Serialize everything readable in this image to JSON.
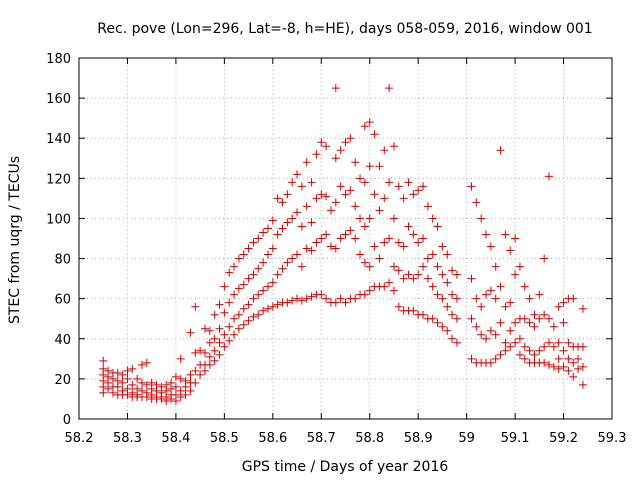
{
  "colors": {
    "series": "#d40000",
    "background": "#ffffff",
    "axis": "#000000",
    "grid": "#b0b0b0"
  },
  "chart_data": {
    "type": "scatter",
    "title": "Rec. pove (Lon=296, Lat=-8, h=HE), days 058-059, 2016, window 001",
    "xlabel": "GPS time / Days of year 2016",
    "ylabel": "STEC from uqrg / TECUs",
    "xlim": [
      58.2,
      59.3
    ],
    "ylim": [
      0,
      180
    ],
    "xticks": [
      58.2,
      58.3,
      58.4,
      58.5,
      58.6,
      58.7,
      58.8,
      58.9,
      59.0,
      59.1,
      59.2,
      59.3
    ],
    "xtick_labels": [
      "58.2",
      "58.3",
      "58.4",
      "58.5",
      "58.6",
      "58.7",
      "58.8",
      "58.9",
      "59",
      "59.1",
      "59.2",
      "59.3"
    ],
    "yticks": [
      0,
      20,
      40,
      60,
      80,
      100,
      120,
      140,
      160,
      180
    ],
    "ytick_labels": [
      "0",
      "20",
      "40",
      "60",
      "80",
      "100",
      "120",
      "140",
      "160",
      "180"
    ],
    "grid": true,
    "marker": "plus",
    "points": [
      [
        58.25,
        29
      ],
      [
        58.25,
        25
      ],
      [
        58.25,
        22
      ],
      [
        58.25,
        19
      ],
      [
        58.25,
        16
      ],
      [
        58.25,
        13
      ],
      [
        58.26,
        24
      ],
      [
        58.26,
        21
      ],
      [
        58.26,
        18
      ],
      [
        58.26,
        15
      ],
      [
        58.27,
        23
      ],
      [
        58.27,
        20
      ],
      [
        58.27,
        16
      ],
      [
        58.27,
        13
      ],
      [
        58.28,
        23
      ],
      [
        58.28,
        19
      ],
      [
        58.28,
        16
      ],
      [
        58.28,
        12
      ],
      [
        58.29,
        22
      ],
      [
        58.29,
        18
      ],
      [
        58.29,
        14
      ],
      [
        58.29,
        12
      ],
      [
        58.3,
        24
      ],
      [
        58.3,
        20
      ],
      [
        58.3,
        15
      ],
      [
        58.3,
        12
      ],
      [
        58.31,
        25
      ],
      [
        58.31,
        17
      ],
      [
        58.31,
        13
      ],
      [
        58.31,
        11
      ],
      [
        58.32,
        20
      ],
      [
        58.32,
        15
      ],
      [
        58.32,
        12
      ],
      [
        58.32,
        11
      ],
      [
        58.33,
        27
      ],
      [
        58.33,
        18
      ],
      [
        58.33,
        14
      ],
      [
        58.33,
        11
      ],
      [
        58.34,
        28
      ],
      [
        58.34,
        17
      ],
      [
        58.34,
        13
      ],
      [
        58.34,
        11
      ],
      [
        58.35,
        18
      ],
      [
        58.35,
        15
      ],
      [
        58.35,
        12
      ],
      [
        58.35,
        10
      ],
      [
        58.36,
        17
      ],
      [
        58.36,
        14
      ],
      [
        58.36,
        11
      ],
      [
        58.36,
        10
      ],
      [
        58.37,
        16
      ],
      [
        58.37,
        13
      ],
      [
        58.37,
        11
      ],
      [
        58.37,
        10
      ],
      [
        58.38,
        17
      ],
      [
        58.38,
        14
      ],
      [
        58.38,
        11
      ],
      [
        58.38,
        9
      ],
      [
        58.39,
        18
      ],
      [
        58.39,
        15
      ],
      [
        58.39,
        12
      ],
      [
        58.39,
        10
      ],
      [
        58.4,
        21
      ],
      [
        58.4,
        16
      ],
      [
        58.4,
        12
      ],
      [
        58.4,
        9
      ],
      [
        58.41,
        30
      ],
      [
        58.41,
        20
      ],
      [
        58.41,
        14
      ],
      [
        58.41,
        11
      ],
      [
        58.42,
        19
      ],
      [
        58.42,
        16
      ],
      [
        58.42,
        12
      ],
      [
        58.43,
        43
      ],
      [
        58.43,
        22
      ],
      [
        58.43,
        18
      ],
      [
        58.43,
        14
      ],
      [
        58.44,
        56
      ],
      [
        58.44,
        33
      ],
      [
        58.44,
        24
      ],
      [
        58.44,
        18
      ],
      [
        58.45,
        34
      ],
      [
        58.45,
        27
      ],
      [
        58.45,
        22
      ],
      [
        58.46,
        45
      ],
      [
        58.46,
        33
      ],
      [
        58.46,
        27
      ],
      [
        58.46,
        24
      ],
      [
        58.47,
        44
      ],
      [
        58.47,
        38
      ],
      [
        58.47,
        31
      ],
      [
        58.47,
        27
      ],
      [
        58.48,
        52
      ],
      [
        58.48,
        40
      ],
      [
        58.48,
        34
      ],
      [
        58.48,
        29
      ],
      [
        58.49,
        57
      ],
      [
        58.49,
        45
      ],
      [
        58.49,
        38
      ],
      [
        58.49,
        32
      ],
      [
        58.5,
        66
      ],
      [
        58.5,
        53
      ],
      [
        58.5,
        42
      ],
      [
        58.5,
        36
      ],
      [
        58.51,
        73
      ],
      [
        58.51,
        58
      ],
      [
        58.51,
        46
      ],
      [
        58.51,
        39
      ],
      [
        58.52,
        76
      ],
      [
        58.52,
        62
      ],
      [
        58.52,
        50
      ],
      [
        58.52,
        42
      ],
      [
        58.53,
        80
      ],
      [
        58.53,
        65
      ],
      [
        58.53,
        52
      ],
      [
        58.53,
        45
      ],
      [
        58.54,
        82
      ],
      [
        58.54,
        67
      ],
      [
        58.54,
        55
      ],
      [
        58.54,
        47
      ],
      [
        58.55,
        85
      ],
      [
        58.55,
        70
      ],
      [
        58.55,
        57
      ],
      [
        58.55,
        49
      ],
      [
        58.56,
        88
      ],
      [
        58.56,
        72
      ],
      [
        58.56,
        60
      ],
      [
        58.56,
        51
      ],
      [
        58.57,
        90
      ],
      [
        58.57,
        75
      ],
      [
        58.57,
        62
      ],
      [
        58.57,
        52
      ],
      [
        58.58,
        93
      ],
      [
        58.58,
        78
      ],
      [
        58.58,
        64
      ],
      [
        58.58,
        54
      ],
      [
        58.59,
        95
      ],
      [
        58.59,
        82
      ],
      [
        58.59,
        66
      ],
      [
        58.59,
        55
      ],
      [
        58.6,
        99
      ],
      [
        58.6,
        85
      ],
      [
        58.6,
        68
      ],
      [
        58.6,
        56
      ],
      [
        58.61,
        110
      ],
      [
        58.61,
        92
      ],
      [
        58.61,
        72
      ],
      [
        58.61,
        57
      ],
      [
        58.62,
        108
      ],
      [
        58.62,
        95
      ],
      [
        58.62,
        75
      ],
      [
        58.62,
        58
      ],
      [
        58.63,
        112
      ],
      [
        58.63,
        98
      ],
      [
        58.63,
        78
      ],
      [
        58.63,
        58
      ],
      [
        58.64,
        118
      ],
      [
        58.64,
        100
      ],
      [
        58.64,
        80
      ],
      [
        58.64,
        59
      ],
      [
        58.65,
        122
      ],
      [
        58.65,
        103
      ],
      [
        58.65,
        82
      ],
      [
        58.65,
        60
      ],
      [
        58.66,
        116
      ],
      [
        58.66,
        96
      ],
      [
        58.66,
        76
      ],
      [
        58.66,
        59
      ],
      [
        58.67,
        128
      ],
      [
        58.67,
        106
      ],
      [
        58.67,
        85
      ],
      [
        58.67,
        60
      ],
      [
        58.68,
        118
      ],
      [
        58.68,
        98
      ],
      [
        58.68,
        84
      ],
      [
        58.68,
        61
      ],
      [
        58.69,
        132
      ],
      [
        58.69,
        110
      ],
      [
        58.69,
        88
      ],
      [
        58.69,
        62
      ],
      [
        58.7,
        138
      ],
      [
        58.7,
        112
      ],
      [
        58.7,
        90
      ],
      [
        58.7,
        62
      ],
      [
        58.71,
        136
      ],
      [
        58.71,
        111
      ],
      [
        58.71,
        92
      ],
      [
        58.71,
        60
      ],
      [
        58.72,
        104
      ],
      [
        58.72,
        86
      ],
      [
        58.72,
        58
      ],
      [
        58.73,
        165
      ],
      [
        58.73,
        130
      ],
      [
        58.73,
        108
      ],
      [
        58.73,
        85
      ],
      [
        58.73,
        58
      ],
      [
        58.74,
        134
      ],
      [
        58.74,
        116
      ],
      [
        58.74,
        90
      ],
      [
        58.74,
        60
      ],
      [
        58.75,
        138
      ],
      [
        58.75,
        112
      ],
      [
        58.75,
        92
      ],
      [
        58.75,
        58
      ],
      [
        58.76,
        140
      ],
      [
        58.76,
        114
      ],
      [
        58.76,
        94
      ],
      [
        58.76,
        60
      ],
      [
        58.77,
        128
      ],
      [
        58.77,
        106
      ],
      [
        58.77,
        90
      ],
      [
        58.77,
        60
      ],
      [
        58.78,
        120
      ],
      [
        58.78,
        100
      ],
      [
        58.78,
        82
      ],
      [
        58.78,
        62
      ],
      [
        58.79,
        146
      ],
      [
        58.79,
        118
      ],
      [
        58.79,
        96
      ],
      [
        58.79,
        78
      ],
      [
        58.79,
        62
      ],
      [
        58.8,
        148
      ],
      [
        58.8,
        126
      ],
      [
        58.8,
        100
      ],
      [
        58.8,
        76
      ],
      [
        58.8,
        64
      ],
      [
        58.81,
        142
      ],
      [
        58.81,
        112
      ],
      [
        58.81,
        86
      ],
      [
        58.81,
        66
      ],
      [
        58.82,
        126
      ],
      [
        58.82,
        104
      ],
      [
        58.82,
        80
      ],
      [
        58.82,
        66
      ],
      [
        58.83,
        134
      ],
      [
        58.83,
        110
      ],
      [
        58.83,
        88
      ],
      [
        58.83,
        66
      ],
      [
        58.84,
        165
      ],
      [
        58.84,
        118
      ],
      [
        58.84,
        90
      ],
      [
        58.84,
        68
      ],
      [
        58.85,
        136
      ],
      [
        58.85,
        100
      ],
      [
        58.85,
        76
      ],
      [
        58.85,
        64
      ],
      [
        58.86,
        116
      ],
      [
        58.86,
        88
      ],
      [
        58.86,
        74
      ],
      [
        58.86,
        56
      ],
      [
        58.87,
        110
      ],
      [
        58.87,
        86
      ],
      [
        58.87,
        70
      ],
      [
        58.87,
        54
      ],
      [
        58.88,
        118
      ],
      [
        58.88,
        96
      ],
      [
        58.88,
        72
      ],
      [
        58.88,
        54
      ],
      [
        58.89,
        112
      ],
      [
        58.89,
        92
      ],
      [
        58.89,
        70
      ],
      [
        58.89,
        54
      ],
      [
        58.9,
        114
      ],
      [
        58.9,
        88
      ],
      [
        58.9,
        72
      ],
      [
        58.9,
        52
      ],
      [
        58.91,
        116
      ],
      [
        58.91,
        90
      ],
      [
        58.91,
        76
      ],
      [
        58.91,
        52
      ],
      [
        58.92,
        106
      ],
      [
        58.92,
        80
      ],
      [
        58.92,
        70
      ],
      [
        58.92,
        50
      ],
      [
        58.93,
        100
      ],
      [
        58.93,
        82
      ],
      [
        58.93,
        66
      ],
      [
        58.93,
        50
      ],
      [
        58.94,
        96
      ],
      [
        58.94,
        76
      ],
      [
        58.94,
        62
      ],
      [
        58.94,
        48
      ],
      [
        58.95,
        86
      ],
      [
        58.95,
        72
      ],
      [
        58.95,
        60
      ],
      [
        58.95,
        46
      ],
      [
        58.96,
        82
      ],
      [
        58.96,
        68
      ],
      [
        58.96,
        56
      ],
      [
        58.96,
        44
      ],
      [
        58.97,
        74
      ],
      [
        58.97,
        62
      ],
      [
        58.97,
        52
      ],
      [
        58.97,
        40
      ],
      [
        58.98,
        72
      ],
      [
        58.98,
        60
      ],
      [
        58.98,
        50
      ],
      [
        58.98,
        38
      ],
      [
        59.01,
        116
      ],
      [
        59.01,
        70
      ],
      [
        59.01,
        50
      ],
      [
        59.01,
        30
      ],
      [
        59.02,
        108
      ],
      [
        59.02,
        60
      ],
      [
        59.02,
        46
      ],
      [
        59.02,
        28
      ],
      [
        59.03,
        100
      ],
      [
        59.03,
        56
      ],
      [
        59.03,
        42
      ],
      [
        59.03,
        28
      ],
      [
        59.04,
        92
      ],
      [
        59.04,
        62
      ],
      [
        59.04,
        40
      ],
      [
        59.04,
        28
      ],
      [
        59.05,
        86
      ],
      [
        59.05,
        64
      ],
      [
        59.05,
        44
      ],
      [
        59.05,
        28
      ],
      [
        59.06,
        76
      ],
      [
        59.06,
        60
      ],
      [
        59.06,
        42
      ],
      [
        59.06,
        30
      ],
      [
        59.07,
        134
      ],
      [
        59.07,
        66
      ],
      [
        59.07,
        48
      ],
      [
        59.07,
        32
      ],
      [
        59.08,
        92
      ],
      [
        59.08,
        56
      ],
      [
        59.08,
        38
      ],
      [
        59.08,
        34
      ],
      [
        59.09,
        84
      ],
      [
        59.09,
        58
      ],
      [
        59.09,
        44
      ],
      [
        59.09,
        36
      ],
      [
        59.1,
        90
      ],
      [
        59.1,
        72
      ],
      [
        59.1,
        48
      ],
      [
        59.1,
        38
      ],
      [
        59.11,
        76
      ],
      [
        59.11,
        50
      ],
      [
        59.11,
        40
      ],
      [
        59.11,
        32
      ],
      [
        59.12,
        66
      ],
      [
        59.12,
        50
      ],
      [
        59.12,
        36
      ],
      [
        59.12,
        30
      ],
      [
        59.13,
        60
      ],
      [
        59.13,
        48
      ],
      [
        59.13,
        34
      ],
      [
        59.13,
        28
      ],
      [
        59.14,
        52
      ],
      [
        59.14,
        46
      ],
      [
        59.14,
        32
      ],
      [
        59.14,
        28
      ],
      [
        59.15,
        62
      ],
      [
        59.15,
        50
      ],
      [
        59.15,
        34
      ],
      [
        59.15,
        28
      ],
      [
        59.16,
        80
      ],
      [
        59.16,
        52
      ],
      [
        59.16,
        36
      ],
      [
        59.16,
        28
      ],
      [
        59.17,
        121
      ],
      [
        59.17,
        50
      ],
      [
        59.17,
        38
      ],
      [
        59.17,
        27
      ],
      [
        59.18,
        46
      ],
      [
        59.18,
        36
      ],
      [
        59.18,
        26
      ],
      [
        59.19,
        56
      ],
      [
        59.19,
        38
      ],
      [
        59.19,
        30
      ],
      [
        59.19,
        25
      ],
      [
        59.2,
        58
      ],
      [
        59.2,
        48
      ],
      [
        59.2,
        34
      ],
      [
        59.2,
        26
      ],
      [
        59.21,
        60
      ],
      [
        59.21,
        38
      ],
      [
        59.21,
        30
      ],
      [
        59.21,
        24
      ],
      [
        59.22,
        60
      ],
      [
        59.22,
        36
      ],
      [
        59.22,
        28
      ],
      [
        59.22,
        21
      ],
      [
        59.23,
        36
      ],
      [
        59.23,
        30
      ],
      [
        59.23,
        25
      ],
      [
        59.24,
        55
      ],
      [
        59.24,
        36
      ],
      [
        59.24,
        26
      ],
      [
        59.24,
        17
      ]
    ]
  }
}
